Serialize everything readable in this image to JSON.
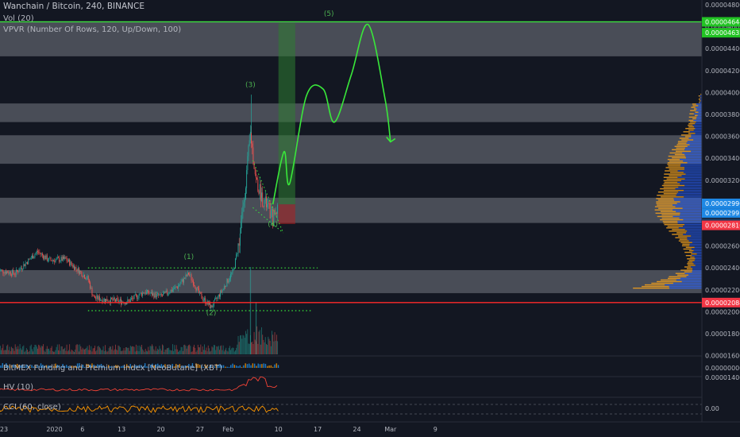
{
  "header": {
    "title": "Wanchain / Bitcoin, 240, BINANCE",
    "vol": "Vol (20)",
    "vpvr": "VPVR (Number Of Rows, 120, Up/Down, 100)"
  },
  "indicators": {
    "bitmex": "BitMEX Funding and Premium Index [NeoButane] (XBT)",
    "hv": "HV (10)",
    "cci": "CCI (60, close)"
  },
  "colors": {
    "background": "#131722",
    "up": "#26a69a",
    "down": "#ef5350",
    "projection": "#39e83a",
    "support": "#ff2a2a",
    "zone": "#b9bcc4",
    "vpvr_up": "#2962ff",
    "vpvr_down": "#f7a21b"
  },
  "chart_data": {
    "type": "candlestick",
    "title": "Wanchain / Bitcoin, 240, BINANCE",
    "price_ticks": [
      "0.00004800",
      "0.00004600",
      "0.00004400",
      "0.00004200",
      "0.00004000",
      "0.00003800",
      "0.00003600",
      "0.00003400",
      "0.00003200",
      "0.00002600",
      "0.00002400",
      "0.00002200",
      "0.00002000",
      "0.00001800",
      "0.00001600",
      "0.00001400"
    ],
    "price_markers": [
      {
        "label": "0.00004644",
        "kind": "green"
      },
      {
        "label": "0.00004632",
        "kind": "green"
      },
      {
        "label": "0.00002996",
        "kind": "blue"
      },
      {
        "label": "0.00002995",
        "kind": "blue"
      },
      {
        "label": "02:58:36",
        "kind": "dark"
      },
      {
        "label": "0.00002810",
        "kind": "red"
      },
      {
        "label": "0.00002084",
        "kind": "red"
      }
    ],
    "indicator_ticks": [
      {
        "label": "0.00000000",
        "panel": "bitmex"
      },
      {
        "label": "0.00",
        "panel": "cci"
      }
    ],
    "x_ticks": [
      "23",
      "2020",
      "6",
      "13",
      "20",
      "27",
      "Feb",
      "10",
      "17",
      "24",
      "Mar",
      "9"
    ],
    "x_tick_dates": [
      "2019-12-23",
      "2020-01-01",
      "2020-01-06",
      "2020-01-13",
      "2020-01-20",
      "2020-01-27",
      "2020-02-01",
      "2020-02-10",
      "2020-02-17",
      "2020-02-24",
      "2020-03-01",
      "2020-03-09"
    ],
    "price_path": [
      [
        "2019-12-22",
        2.38e-05
      ],
      [
        "2019-12-25",
        2.35e-05
      ],
      [
        "2019-12-29",
        2.55e-05
      ],
      [
        "2019-12-31",
        2.47e-05
      ],
      [
        "2020-01-03",
        2.48e-05
      ],
      [
        "2020-01-07",
        2.3e-05
      ],
      [
        "2020-01-08",
        2.13e-05
      ],
      [
        "2020-01-10",
        2.11e-05
      ],
      [
        "2020-01-14",
        2.09e-05
      ],
      [
        "2020-01-17",
        2.18e-05
      ],
      [
        "2020-01-20",
        2.14e-05
      ],
      [
        "2020-01-23",
        2.23e-05
      ],
      [
        "2020-01-25",
        2.35e-05
      ],
      [
        "2020-01-27",
        2.15e-05
      ],
      [
        "2020-01-29",
        2.04e-05
      ],
      [
        "2020-01-31",
        2.2e-05
      ],
      [
        "2020-02-02",
        2.38e-05
      ],
      [
        "2020-02-03",
        2.65e-05
      ],
      [
        "2020-02-04",
        3.1e-05
      ],
      [
        "2020-02-05",
        3.63e-05
      ],
      [
        "2020-02-06",
        3.2e-05
      ],
      [
        "2020-02-07",
        3.05e-05
      ],
      [
        "2020-02-08",
        2.96e-05
      ],
      [
        "2020-02-09",
        2.85e-05
      ],
      [
        "2020-02-10",
        2.98e-05
      ]
    ],
    "volume_peaks": [
      {
        "date": "2020-02-05",
        "relative": 1.0
      },
      {
        "date": "2020-02-06",
        "relative": 0.6
      }
    ],
    "zones": [
      {
        "from": 4.33e-05,
        "to": 4.65e-05
      },
      {
        "from": 3.73e-05,
        "to": 3.9e-05
      },
      {
        "from": 3.35e-05,
        "to": 3.61e-05
      },
      {
        "from": 2.81e-05,
        "to": 3.04e-05
      },
      {
        "from": 2.17e-05,
        "to": 2.38e-05
      }
    ],
    "support_line": 2.084e-05,
    "target_line": 4.644e-05,
    "trend_lines": [
      {
        "from": [
          "2020-01-07",
          2.4e-05
        ],
        "to": [
          "2020-02-17",
          2.4e-05
        ]
      },
      {
        "from": [
          "2020-01-07",
          2.01e-05
        ],
        "to": [
          "2020-02-16",
          2.01e-05
        ]
      }
    ],
    "position": {
      "start": "2020-02-10",
      "end": "2020-02-13",
      "entry": 2.98e-05,
      "target": 4.633e-05,
      "stop": 2.8e-05
    },
    "wave_labels": [
      {
        "label": "(1)",
        "date": "2020-01-25",
        "price": 2.48e-05
      },
      {
        "label": "(2)",
        "date": "2020-01-29",
        "price": 1.97e-05
      },
      {
        "label": "(3)",
        "date": "2020-02-05",
        "price": 4.05e-05
      },
      {
        "label": "(4)",
        "date": "2020-02-09",
        "price": 2.78e-05
      },
      {
        "label": "(5)",
        "date": "2020-02-19",
        "price": 4.7e-05
      }
    ],
    "projection": [
      [
        "2020-02-09",
        2.98e-05
      ],
      [
        "2020-02-11",
        3.46e-05
      ],
      [
        "2020-02-12",
        3.17e-05
      ],
      [
        "2020-02-15",
        3.97e-05
      ],
      [
        "2020-02-18",
        4.03e-05
      ],
      [
        "2020-02-20",
        3.73e-05
      ],
      [
        "2020-02-23",
        4.16e-05
      ],
      [
        "2020-02-26",
        4.62e-05
      ],
      [
        "2020-02-29",
        3.95e-05
      ],
      [
        "2020-03-01",
        3.55e-05
      ]
    ],
    "last_candle_time": "02:58:36"
  }
}
